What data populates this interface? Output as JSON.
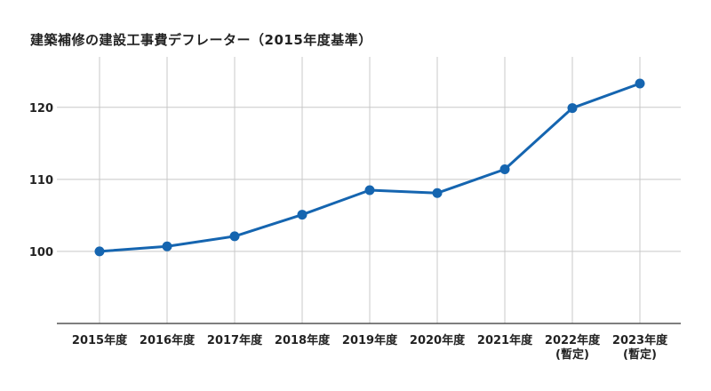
{
  "chart_data": {
    "type": "line",
    "title": "建築補修の建設工事費デフレーター（2015年度基準）",
    "xlabel": "",
    "ylabel": "",
    "categories": [
      [
        "2015年度"
      ],
      [
        "2016年度"
      ],
      [
        "2017年度"
      ],
      [
        "2018年度"
      ],
      [
        "2019年度"
      ],
      [
        "2020年度"
      ],
      [
        "2021年度"
      ],
      [
        "2022年度",
        "(暫定)"
      ],
      [
        "2023年度",
        "(暫定)"
      ]
    ],
    "series": [
      {
        "color": "#1565b0",
        "values": [
          100.0,
          100.7,
          102.1,
          105.1,
          108.5,
          108.1,
          111.4,
          119.9,
          123.3
        ]
      }
    ],
    "yticks": [
      100,
      110,
      120
    ],
    "ylim": [
      90,
      127
    ],
    "grid": true,
    "legend": "none"
  }
}
